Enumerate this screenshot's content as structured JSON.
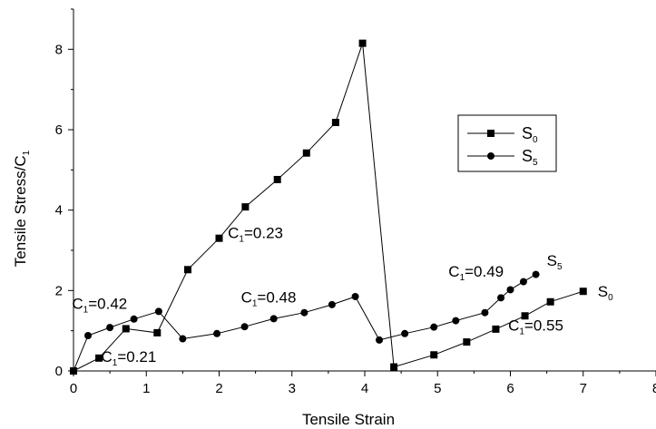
{
  "chart_data": {
    "type": "line",
    "xlabel": "Tensile Strain",
    "ylabel": {
      "main": "Tensile Stress/C",
      "sub": "1"
    },
    "xlim": [
      0,
      8
    ],
    "ylim": [
      0,
      9
    ],
    "xticks": [
      "0",
      "1",
      "2",
      "3",
      "4",
      "5",
      "6",
      "7",
      "8"
    ],
    "yticks": [
      "0",
      "2",
      "4",
      "6",
      "8"
    ],
    "xtick_values": [
      0,
      1,
      2,
      3,
      4,
      5,
      6,
      7,
      8
    ],
    "ytick_values": [
      0,
      2,
      4,
      6,
      8
    ],
    "grid": false,
    "legend_position": "right",
    "series": [
      {
        "name": "S",
        "name_sub": "0",
        "marker": "square",
        "color": "#000000",
        "points": [
          [
            0.0,
            0.0
          ],
          [
            0.35,
            0.32
          ],
          [
            0.72,
            1.05
          ],
          [
            1.15,
            0.95
          ],
          [
            1.57,
            2.52
          ],
          [
            2.0,
            3.3
          ],
          [
            2.36,
            4.08
          ],
          [
            2.8,
            4.76
          ],
          [
            3.2,
            5.42
          ],
          [
            3.6,
            6.18
          ],
          [
            3.97,
            8.15
          ],
          [
            4.4,
            0.1
          ],
          [
            4.95,
            0.4
          ],
          [
            5.4,
            0.72
          ],
          [
            5.8,
            1.04
          ],
          [
            6.2,
            1.37
          ],
          [
            6.55,
            1.72
          ],
          [
            7.0,
            1.98
          ]
        ]
      },
      {
        "name": "S",
        "name_sub": "5",
        "marker": "circle",
        "color": "#000000",
        "points": [
          [
            0.0,
            0.0
          ],
          [
            0.2,
            0.88
          ],
          [
            0.5,
            1.08
          ],
          [
            0.83,
            1.29
          ],
          [
            1.17,
            1.48
          ],
          [
            1.5,
            0.8
          ],
          [
            1.97,
            0.93
          ],
          [
            2.35,
            1.1
          ],
          [
            2.75,
            1.3
          ],
          [
            3.17,
            1.45
          ],
          [
            3.55,
            1.65
          ],
          [
            3.87,
            1.85
          ],
          [
            4.2,
            0.77
          ],
          [
            4.55,
            0.93
          ],
          [
            4.95,
            1.09
          ],
          [
            5.25,
            1.25
          ],
          [
            5.65,
            1.45
          ],
          [
            5.87,
            1.82
          ],
          [
            6.0,
            2.02
          ],
          [
            6.18,
            2.22
          ],
          [
            6.35,
            2.4
          ]
        ]
      }
    ],
    "annotations": [
      {
        "pre": "C",
        "sub": "1",
        "post": "=0.23",
        "x": 2.12,
        "y": 3.3
      },
      {
        "pre": "C",
        "sub": "1",
        "post": "=0.42",
        "x": -0.02,
        "y": 1.55
      },
      {
        "pre": "C",
        "sub": "1",
        "post": "=0.21",
        "x": 0.38,
        "y": 0.23
      },
      {
        "pre": "C",
        "sub": "1",
        "post": "=0.48",
        "x": 2.3,
        "y": 1.7
      },
      {
        "pre": "C",
        "sub": "1",
        "post": "=0.49",
        "x": 5.15,
        "y": 2.35
      },
      {
        "pre": "C",
        "sub": "1",
        "post": "=0.55",
        "x": 5.97,
        "y": 1.0
      },
      {
        "pre": "S",
        "sub": "5",
        "post": "",
        "x": 6.5,
        "y": 2.62
      },
      {
        "pre": "S",
        "sub": "0",
        "post": "",
        "x": 7.2,
        "y": 1.85
      }
    ]
  }
}
